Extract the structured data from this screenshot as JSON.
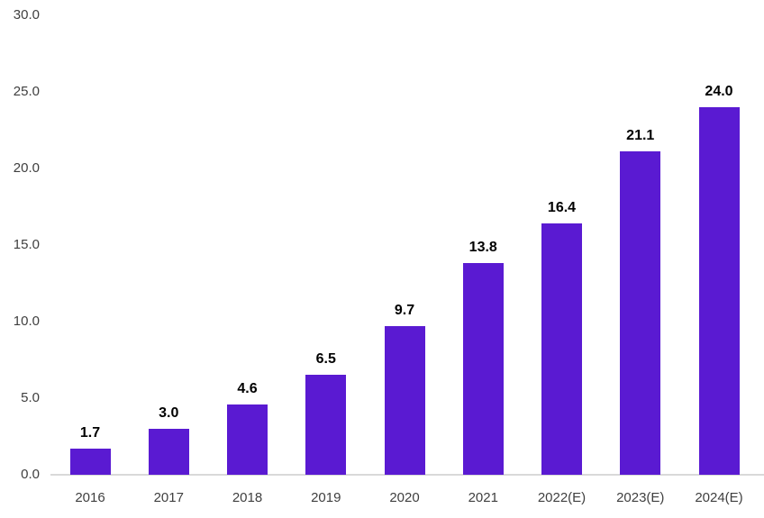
{
  "chart_data": {
    "type": "bar",
    "title": "",
    "xlabel": "",
    "ylabel": "",
    "categories": [
      "2016",
      "2017",
      "2018",
      "2019",
      "2020",
      "2021",
      "2022(E)",
      "2023(E)",
      "2024(E)"
    ],
    "values": [
      1.7,
      3.0,
      4.6,
      6.5,
      9.7,
      13.8,
      16.4,
      21.1,
      24.0
    ],
    "value_labels": [
      "1.7",
      "3.0",
      "4.6",
      "6.5",
      "9.7",
      "13.8",
      "16.4",
      "21.1",
      "24.0"
    ],
    "y_ticks": [
      {
        "value": 0,
        "label": "0.0"
      },
      {
        "value": 5,
        "label": "5.0"
      },
      {
        "value": 10,
        "label": "10.0"
      },
      {
        "value": 15,
        "label": "15.0"
      },
      {
        "value": 20,
        "label": "20.0"
      },
      {
        "value": 25,
        "label": "25.0"
      },
      {
        "value": 30,
        "label": "30.0"
      }
    ],
    "ylim": [
      0,
      30
    ],
    "grid": false,
    "legend": "none",
    "colors": {
      "bar": "#5a1ad2",
      "axis_line": "#d9d9d9",
      "tick_text": "#3f3f3f",
      "value_label_text": "#000000",
      "background": "#ffffff"
    }
  }
}
